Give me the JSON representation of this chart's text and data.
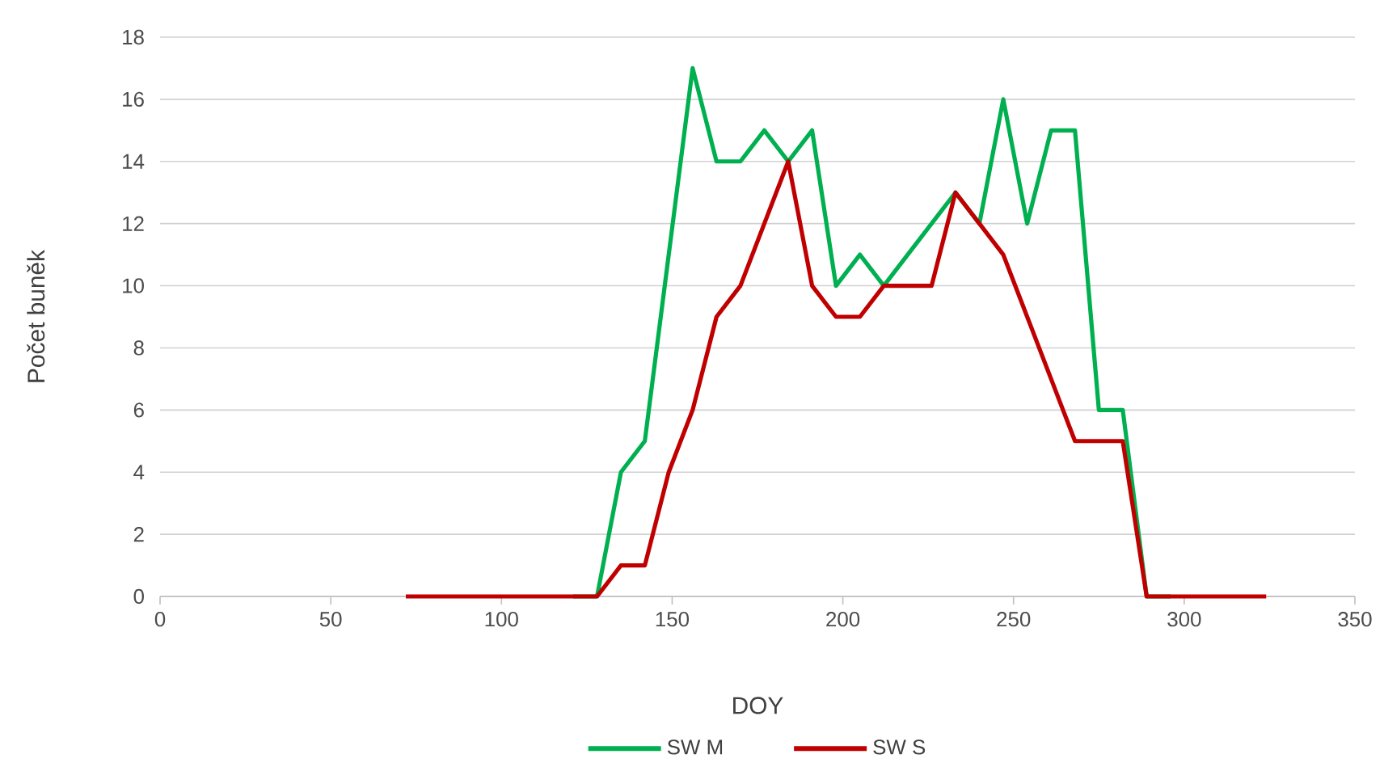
{
  "chart_data": {
    "type": "line",
    "xlabel": "DOY",
    "ylabel": "Počet buněk",
    "x": [
      72,
      79,
      86,
      93,
      100,
      107,
      114,
      121,
      128,
      135,
      142,
      149,
      156,
      163,
      170,
      177,
      184,
      191,
      198,
      205,
      212,
      219,
      226,
      233,
      240,
      247,
      254,
      261,
      268,
      275,
      282,
      289,
      296,
      303,
      310,
      317,
      324
    ],
    "series": [
      {
        "name": "SW M",
        "color": "#00b050",
        "values": [
          null,
          null,
          null,
          null,
          null,
          null,
          null,
          0,
          0,
          4,
          5,
          11,
          17,
          14,
          14,
          15,
          14,
          15,
          10,
          11,
          10,
          11,
          12,
          13,
          12,
          16,
          12,
          15,
          15,
          6,
          6,
          0,
          0,
          null,
          null,
          null,
          null
        ]
      },
      {
        "name": "SW S",
        "color": "#c00000",
        "values": [
          0,
          0,
          0,
          0,
          0,
          0,
          0,
          0,
          0,
          1,
          1,
          4,
          6,
          9,
          10,
          12,
          14,
          10,
          9,
          9,
          10,
          10,
          10,
          13,
          12,
          11,
          9,
          7,
          5,
          5,
          5,
          0,
          0,
          0,
          0,
          0,
          0
        ]
      }
    ],
    "xlim": [
      0,
      350
    ],
    "xticks": [
      0,
      50,
      100,
      150,
      200,
      250,
      300,
      350
    ],
    "ylim": [
      0,
      18
    ],
    "yticks": [
      0,
      2,
      4,
      6,
      8,
      10,
      12,
      14,
      16,
      18
    ],
    "grid": "y",
    "legend": "bottom",
    "marker": "none",
    "line_style": "solid"
  }
}
